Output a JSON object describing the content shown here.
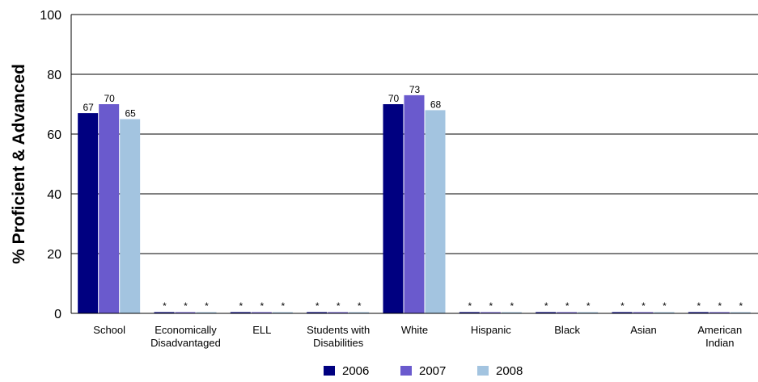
{
  "chart_data": {
    "type": "bar",
    "ylabel": "% Proficient & Advanced",
    "ylim": [
      0,
      100
    ],
    "yticks": [
      0,
      20,
      40,
      60,
      80,
      100
    ],
    "grid": true,
    "legend_position": "bottom",
    "categories": [
      [
        "School"
      ],
      [
        "Economically",
        "Disadvantaged"
      ],
      [
        "ELL"
      ],
      [
        "Students with",
        "Disabilities"
      ],
      [
        "White"
      ],
      [
        "Hispanic"
      ],
      [
        "Black"
      ],
      [
        "Asian"
      ],
      [
        "American",
        "Indian"
      ]
    ],
    "series": [
      {
        "name": "2006",
        "color": "#000080",
        "values": [
          67,
          null,
          null,
          null,
          70,
          null,
          null,
          null,
          null
        ],
        "labels": [
          "67",
          "*",
          "*",
          "*",
          "70",
          "*",
          "*",
          "*",
          "*"
        ]
      },
      {
        "name": "2007",
        "color": "#6A5ACD",
        "values": [
          70,
          null,
          null,
          null,
          73,
          null,
          null,
          null,
          null
        ],
        "labels": [
          "70",
          "*",
          "*",
          "*",
          "73",
          "*",
          "*",
          "*",
          "*"
        ]
      },
      {
        "name": "2008",
        "color": "#A3C4E0",
        "values": [
          65,
          null,
          null,
          null,
          68,
          null,
          null,
          null,
          null
        ],
        "labels": [
          "65",
          "*",
          "*",
          "*",
          "68",
          "*",
          "*",
          "*",
          "*"
        ]
      }
    ]
  }
}
